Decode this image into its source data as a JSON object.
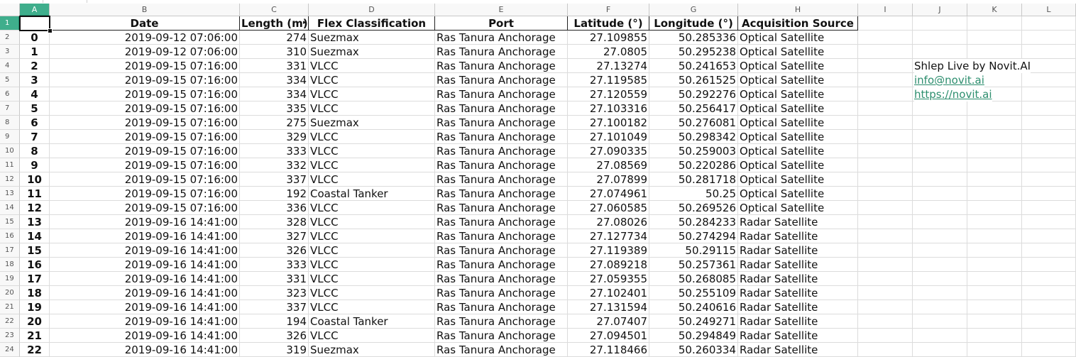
{
  "columns": [
    "A",
    "B",
    "C",
    "D",
    "E",
    "F",
    "G",
    "H",
    "I",
    "J",
    "K",
    "L"
  ],
  "selected_column": "A",
  "selected_row": "1",
  "headers": [
    "",
    "Date",
    "Length (m)",
    "Flex Classification",
    "Port",
    "Latitude (°)",
    "Longitude (°)",
    "Acquisition Source"
  ],
  "rows": [
    [
      "0",
      "2019-09-12 07:06:00",
      "274",
      "Suezmax",
      "Ras Tanura Anchorage",
      "27.109855",
      "50.285336",
      "Optical Satellite"
    ],
    [
      "1",
      "2019-09-12 07:06:00",
      "310",
      "Suezmax",
      "Ras Tanura Anchorage",
      "27.0805",
      "50.295238",
      "Optical Satellite"
    ],
    [
      "2",
      "2019-09-15 07:16:00",
      "331",
      "VLCC",
      "Ras Tanura Anchorage",
      "27.13274",
      "50.241653",
      "Optical Satellite"
    ],
    [
      "3",
      "2019-09-15 07:16:00",
      "334",
      "VLCC",
      "Ras Tanura Anchorage",
      "27.119585",
      "50.261525",
      "Optical Satellite"
    ],
    [
      "4",
      "2019-09-15 07:16:00",
      "334",
      "VLCC",
      "Ras Tanura Anchorage",
      "27.120559",
      "50.292276",
      "Optical Satellite"
    ],
    [
      "5",
      "2019-09-15 07:16:00",
      "335",
      "VLCC",
      "Ras Tanura Anchorage",
      "27.103316",
      "50.256417",
      "Optical Satellite"
    ],
    [
      "6",
      "2019-09-15 07:16:00",
      "275",
      "Suezmax",
      "Ras Tanura Anchorage",
      "27.100182",
      "50.276081",
      "Optical Satellite"
    ],
    [
      "7",
      "2019-09-15 07:16:00",
      "329",
      "VLCC",
      "Ras Tanura Anchorage",
      "27.101049",
      "50.298342",
      "Optical Satellite"
    ],
    [
      "8",
      "2019-09-15 07:16:00",
      "333",
      "VLCC",
      "Ras Tanura Anchorage",
      "27.090335",
      "50.259003",
      "Optical Satellite"
    ],
    [
      "9",
      "2019-09-15 07:16:00",
      "332",
      "VLCC",
      "Ras Tanura Anchorage",
      "27.08569",
      "50.220286",
      "Optical Satellite"
    ],
    [
      "10",
      "2019-09-15 07:16:00",
      "337",
      "VLCC",
      "Ras Tanura Anchorage",
      "27.07899",
      "50.281718",
      "Optical Satellite"
    ],
    [
      "11",
      "2019-09-15 07:16:00",
      "192",
      "Coastal Tanker",
      "Ras Tanura Anchorage",
      "27.074961",
      "50.25",
      "Optical Satellite"
    ],
    [
      "12",
      "2019-09-15 07:16:00",
      "336",
      "VLCC",
      "Ras Tanura Anchorage",
      "27.060585",
      "50.269526",
      "Optical Satellite"
    ],
    [
      "13",
      "2019-09-16 14:41:00",
      "328",
      "VLCC",
      "Ras Tanura Anchorage",
      "27.08026",
      "50.284233",
      "Radar Satellite"
    ],
    [
      "14",
      "2019-09-16 14:41:00",
      "327",
      "VLCC",
      "Ras Tanura Anchorage",
      "27.127734",
      "50.274294",
      "Radar Satellite"
    ],
    [
      "15",
      "2019-09-16 14:41:00",
      "326",
      "VLCC",
      "Ras Tanura Anchorage",
      "27.119389",
      "50.29115",
      "Radar Satellite"
    ],
    [
      "16",
      "2019-09-16 14:41:00",
      "333",
      "VLCC",
      "Ras Tanura Anchorage",
      "27.089218",
      "50.257361",
      "Radar Satellite"
    ],
    [
      "17",
      "2019-09-16 14:41:00",
      "331",
      "VLCC",
      "Ras Tanura Anchorage",
      "27.059355",
      "50.268085",
      "Radar Satellite"
    ],
    [
      "18",
      "2019-09-16 14:41:00",
      "323",
      "VLCC",
      "Ras Tanura Anchorage",
      "27.102401",
      "50.255109",
      "Radar Satellite"
    ],
    [
      "19",
      "2019-09-16 14:41:00",
      "337",
      "VLCC",
      "Ras Tanura Anchorage",
      "27.131594",
      "50.240616",
      "Radar Satellite"
    ],
    [
      "20",
      "2019-09-16 14:41:00",
      "194",
      "Coastal Tanker",
      "Ras Tanura Anchorage",
      "27.07407",
      "50.249271",
      "Radar Satellite"
    ],
    [
      "21",
      "2019-09-16 14:41:00",
      "326",
      "VLCC",
      "Ras Tanura Anchorage",
      "27.094501",
      "50.294849",
      "Radar Satellite"
    ],
    [
      "22",
      "2019-09-16 14:41:00",
      "319",
      "Suezmax",
      "Ras Tanura Anchorage",
      "27.118466",
      "50.260334",
      "Radar Satellite"
    ]
  ],
  "side_notes": {
    "title": "Shlep Live by Novit.AI",
    "email": "info@novit.ai",
    "url": "https://novit.ai"
  },
  "colors": {
    "selection": "#3fae8c",
    "link": "#2c8e6e"
  }
}
